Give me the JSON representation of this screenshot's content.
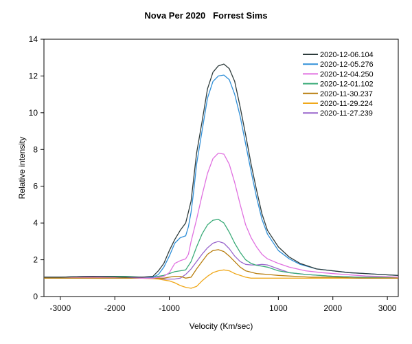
{
  "chart_data": {
    "type": "line",
    "title": "Nova Per 2020   Forrest Sims",
    "xlabel": "Velocity (Km/sec)",
    "ylabel": "Relative intensity",
    "xlim": [
      -3300,
      3200
    ],
    "ylim": [
      0,
      14
    ],
    "xticks": [
      -3000,
      -2000,
      -1000,
      1000,
      2000,
      3000
    ],
    "yticks": [
      0,
      2,
      4,
      6,
      8,
      10,
      12,
      14
    ],
    "grid": false,
    "legend_position": "top-right",
    "series": [
      {
        "name": "2020-12-06.104",
        "color": "#2d3b3b",
        "points": [
          [
            -3300,
            1.05
          ],
          [
            -3000,
            1.05
          ],
          [
            -2700,
            1.08
          ],
          [
            -2400,
            1.1
          ],
          [
            -2100,
            1.08
          ],
          [
            -1800,
            1.05
          ],
          [
            -1500,
            1.05
          ],
          [
            -1300,
            1.1
          ],
          [
            -1200,
            1.4
          ],
          [
            -1100,
            1.8
          ],
          [
            -1000,
            2.5
          ],
          [
            -900,
            3.1
          ],
          [
            -800,
            3.6
          ],
          [
            -700,
            4.0
          ],
          [
            -650,
            4.6
          ],
          [
            -600,
            5.2
          ],
          [
            -550,
            6.5
          ],
          [
            -500,
            7.8
          ],
          [
            -400,
            9.5
          ],
          [
            -300,
            11.3
          ],
          [
            -200,
            12.2
          ],
          [
            -100,
            12.55
          ],
          [
            0,
            12.65
          ],
          [
            100,
            12.4
          ],
          [
            200,
            11.7
          ],
          [
            300,
            10.3
          ],
          [
            400,
            8.8
          ],
          [
            500,
            7.2
          ],
          [
            600,
            5.8
          ],
          [
            700,
            4.5
          ],
          [
            800,
            3.6
          ],
          [
            1000,
            2.7
          ],
          [
            1200,
            2.15
          ],
          [
            1400,
            1.8
          ],
          [
            1700,
            1.5
          ],
          [
            2000,
            1.4
          ],
          [
            2300,
            1.3
          ],
          [
            2600,
            1.25
          ],
          [
            3000,
            1.18
          ],
          [
            3200,
            1.15
          ]
        ]
      },
      {
        "name": "2020-12-05.276",
        "color": "#2f8fd8",
        "points": [
          [
            -3300,
            1.05
          ],
          [
            -3000,
            1.05
          ],
          [
            -2700,
            1.08
          ],
          [
            -2400,
            1.1
          ],
          [
            -2100,
            1.08
          ],
          [
            -1800,
            1.05
          ],
          [
            -1500,
            1.05
          ],
          [
            -1300,
            1.05
          ],
          [
            -1200,
            1.2
          ],
          [
            -1100,
            1.6
          ],
          [
            -1000,
            2.2
          ],
          [
            -900,
            2.9
          ],
          [
            -800,
            3.2
          ],
          [
            -700,
            3.3
          ],
          [
            -650,
            3.8
          ],
          [
            -600,
            4.6
          ],
          [
            -550,
            5.8
          ],
          [
            -500,
            7.2
          ],
          [
            -400,
            9.0
          ],
          [
            -300,
            10.8
          ],
          [
            -200,
            11.7
          ],
          [
            -100,
            12.0
          ],
          [
            0,
            12.05
          ],
          [
            100,
            11.8
          ],
          [
            200,
            11.0
          ],
          [
            300,
            9.8
          ],
          [
            400,
            8.3
          ],
          [
            500,
            6.8
          ],
          [
            600,
            5.4
          ],
          [
            700,
            4.2
          ],
          [
            800,
            3.4
          ],
          [
            1000,
            2.5
          ],
          [
            1200,
            2.05
          ],
          [
            1400,
            1.75
          ],
          [
            1700,
            1.5
          ],
          [
            2000,
            1.4
          ],
          [
            2300,
            1.3
          ],
          [
            2600,
            1.25
          ],
          [
            3000,
            1.18
          ],
          [
            3200,
            1.15
          ]
        ]
      },
      {
        "name": "2020-12-04.250",
        "color": "#e070e0",
        "points": [
          [
            -3300,
            1.05
          ],
          [
            -3000,
            1.05
          ],
          [
            -2700,
            1.05
          ],
          [
            -2400,
            1.05
          ],
          [
            -2100,
            1.05
          ],
          [
            -1800,
            1.05
          ],
          [
            -1500,
            1.0
          ],
          [
            -1300,
            1.0
          ],
          [
            -1100,
            1.1
          ],
          [
            -1000,
            1.3
          ],
          [
            -900,
            1.8
          ],
          [
            -800,
            1.95
          ],
          [
            -700,
            2.05
          ],
          [
            -650,
            2.3
          ],
          [
            -600,
            3.0
          ],
          [
            -500,
            4.2
          ],
          [
            -400,
            5.5
          ],
          [
            -300,
            6.7
          ],
          [
            -200,
            7.5
          ],
          [
            -100,
            7.8
          ],
          [
            0,
            7.75
          ],
          [
            100,
            7.2
          ],
          [
            200,
            6.2
          ],
          [
            300,
            5.0
          ],
          [
            400,
            3.9
          ],
          [
            500,
            3.2
          ],
          [
            600,
            2.7
          ],
          [
            700,
            2.3
          ],
          [
            800,
            2.05
          ],
          [
            1000,
            1.8
          ],
          [
            1200,
            1.6
          ],
          [
            1500,
            1.4
          ],
          [
            1800,
            1.3
          ],
          [
            2200,
            1.2
          ],
          [
            2600,
            1.12
          ],
          [
            3000,
            1.08
          ],
          [
            3200,
            1.05
          ]
        ]
      },
      {
        "name": "2020-12-01.102",
        "color": "#3aab78",
        "points": [
          [
            -3300,
            1.05
          ],
          [
            -3000,
            1.05
          ],
          [
            -2700,
            1.08
          ],
          [
            -2400,
            1.1
          ],
          [
            -2100,
            1.1
          ],
          [
            -1800,
            1.1
          ],
          [
            -1500,
            1.05
          ],
          [
            -1300,
            1.05
          ],
          [
            -1100,
            1.15
          ],
          [
            -1000,
            1.25
          ],
          [
            -900,
            1.35
          ],
          [
            -800,
            1.4
          ],
          [
            -700,
            1.45
          ],
          [
            -600,
            1.9
          ],
          [
            -500,
            2.7
          ],
          [
            -400,
            3.4
          ],
          [
            -300,
            3.9
          ],
          [
            -200,
            4.15
          ],
          [
            -100,
            4.2
          ],
          [
            0,
            4.0
          ],
          [
            100,
            3.5
          ],
          [
            200,
            2.9
          ],
          [
            300,
            2.4
          ],
          [
            400,
            2.0
          ],
          [
            500,
            1.8
          ],
          [
            600,
            1.7
          ],
          [
            700,
            1.65
          ],
          [
            800,
            1.6
          ],
          [
            1000,
            1.4
          ],
          [
            1200,
            1.3
          ],
          [
            1500,
            1.2
          ],
          [
            2000,
            1.1
          ],
          [
            2500,
            1.05
          ],
          [
            3000,
            1.05
          ],
          [
            3200,
            1.05
          ]
        ]
      },
      {
        "name": "2020-11-30.237",
        "color": "#b87d0e",
        "points": [
          [
            -3300,
            1.0
          ],
          [
            -3000,
            1.0
          ],
          [
            -2700,
            1.0
          ],
          [
            -2400,
            1.0
          ],
          [
            -2100,
            1.0
          ],
          [
            -1800,
            1.0
          ],
          [
            -1500,
            1.0
          ],
          [
            -1300,
            1.0
          ],
          [
            -1100,
            1.0
          ],
          [
            -1000,
            1.05
          ],
          [
            -900,
            1.1
          ],
          [
            -800,
            1.1
          ],
          [
            -700,
            1.0
          ],
          [
            -600,
            1.05
          ],
          [
            -500,
            1.5
          ],
          [
            -400,
            1.9
          ],
          [
            -300,
            2.3
          ],
          [
            -200,
            2.5
          ],
          [
            -100,
            2.55
          ],
          [
            0,
            2.45
          ],
          [
            100,
            2.2
          ],
          [
            200,
            1.9
          ],
          [
            300,
            1.6
          ],
          [
            400,
            1.4
          ],
          [
            600,
            1.25
          ],
          [
            800,
            1.2
          ],
          [
            1000,
            1.15
          ],
          [
            1300,
            1.1
          ],
          [
            1600,
            1.05
          ],
          [
            2000,
            1.05
          ],
          [
            2500,
            1.0
          ],
          [
            3000,
            1.0
          ],
          [
            3200,
            1.0
          ]
        ]
      },
      {
        "name": "2020-11-29.224",
        "color": "#f0a81a",
        "points": [
          [
            -3300,
            1.0
          ],
          [
            -3000,
            1.0
          ],
          [
            -2700,
            1.0
          ],
          [
            -2400,
            1.0
          ],
          [
            -2100,
            1.0
          ],
          [
            -1800,
            1.0
          ],
          [
            -1500,
            1.0
          ],
          [
            -1200,
            0.95
          ],
          [
            -1000,
            0.85
          ],
          [
            -900,
            0.75
          ],
          [
            -800,
            0.6
          ],
          [
            -700,
            0.5
          ],
          [
            -600,
            0.45
          ],
          [
            -500,
            0.55
          ],
          [
            -400,
            0.85
          ],
          [
            -300,
            1.1
          ],
          [
            -200,
            1.3
          ],
          [
            -100,
            1.4
          ],
          [
            0,
            1.45
          ],
          [
            100,
            1.4
          ],
          [
            200,
            1.25
          ],
          [
            300,
            1.15
          ],
          [
            400,
            1.05
          ],
          [
            500,
            1.0
          ],
          [
            700,
            1.0
          ],
          [
            1000,
            1.0
          ],
          [
            1500,
            1.0
          ],
          [
            2000,
            1.0
          ],
          [
            2500,
            1.0
          ],
          [
            3000,
            1.0
          ],
          [
            3200,
            1.0
          ]
        ]
      },
      {
        "name": "2020-11-27.239",
        "color": "#9966cc",
        "points": [
          [
            -3300,
            1.05
          ],
          [
            -3000,
            1.05
          ],
          [
            -2700,
            1.05
          ],
          [
            -2400,
            1.05
          ],
          [
            -2100,
            1.05
          ],
          [
            -1800,
            1.05
          ],
          [
            -1500,
            1.05
          ],
          [
            -1300,
            1.0
          ],
          [
            -1100,
            0.95
          ],
          [
            -1000,
            0.95
          ],
          [
            -900,
            0.95
          ],
          [
            -800,
            1.0
          ],
          [
            -700,
            1.2
          ],
          [
            -600,
            1.5
          ],
          [
            -500,
            1.9
          ],
          [
            -400,
            2.3
          ],
          [
            -300,
            2.65
          ],
          [
            -200,
            2.9
          ],
          [
            -100,
            3.0
          ],
          [
            0,
            2.9
          ],
          [
            100,
            2.6
          ],
          [
            200,
            2.2
          ],
          [
            300,
            1.9
          ],
          [
            400,
            1.75
          ],
          [
            500,
            1.72
          ],
          [
            600,
            1.72
          ],
          [
            700,
            1.75
          ],
          [
            800,
            1.72
          ],
          [
            1000,
            1.5
          ],
          [
            1200,
            1.3
          ],
          [
            1500,
            1.2
          ],
          [
            2000,
            1.1
          ],
          [
            2500,
            1.05
          ],
          [
            3000,
            1.05
          ],
          [
            3200,
            1.05
          ]
        ]
      }
    ]
  }
}
